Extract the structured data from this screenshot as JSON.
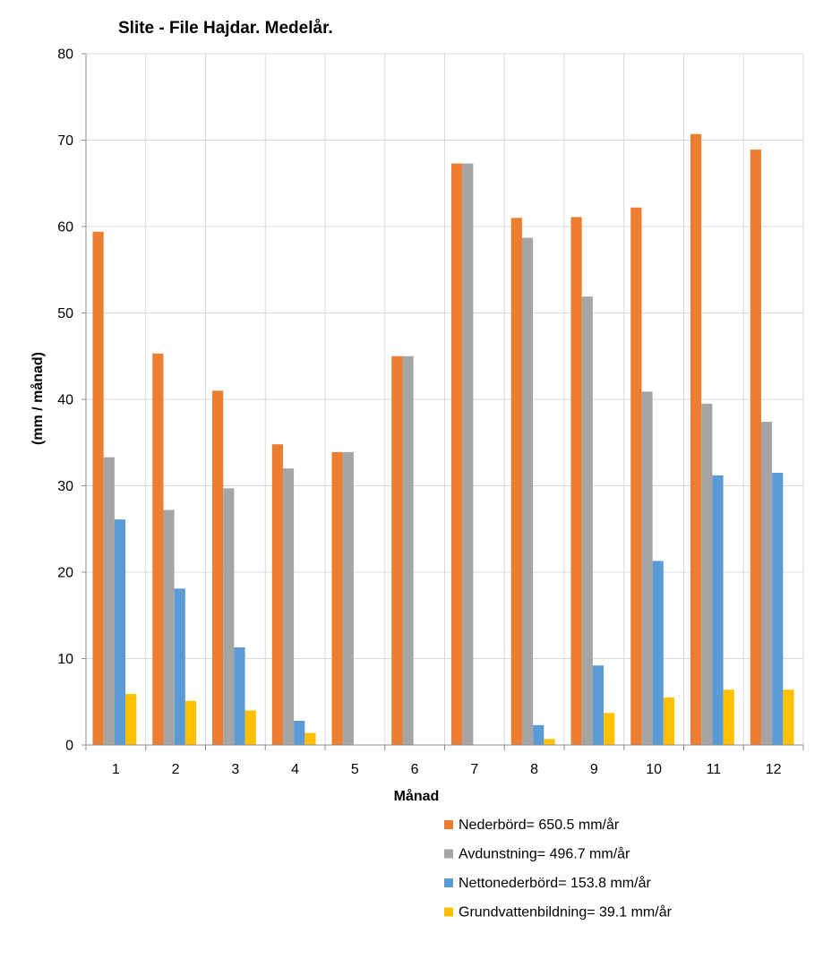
{
  "chart_data": {
    "type": "bar",
    "title": "Slite - File Hajdar. Medelår.",
    "xlabel": "Månad",
    "ylabel": "(mm  / månad)",
    "ylim": [
      0,
      80
    ],
    "yticks": [
      0,
      10,
      20,
      30,
      40,
      50,
      60,
      70,
      80
    ],
    "grid": true,
    "legend_position": "bottom-right",
    "categories": [
      "1",
      "2",
      "3",
      "4",
      "5",
      "6",
      "7",
      "8",
      "9",
      "10",
      "11",
      "12"
    ],
    "series": [
      {
        "name": "Nederbörd= 650.5 mm/år",
        "color": "#ED7D31",
        "values": [
          59.4,
          45.3,
          41.0,
          34.8,
          33.9,
          45.0,
          67.3,
          61.0,
          61.1,
          62.2,
          70.7,
          68.9
        ]
      },
      {
        "name": "Avdunstning= 496.7 mm/år",
        "color": "#A5A5A5",
        "values": [
          33.3,
          27.2,
          29.7,
          32.0,
          33.9,
          45.0,
          67.3,
          58.7,
          51.9,
          40.9,
          39.5,
          37.4
        ]
      },
      {
        "name": "Nettonederbörd= 153.8 mm/år",
        "color": "#5B9BD5",
        "values": [
          26.1,
          18.1,
          11.3,
          2.8,
          0,
          0,
          0,
          2.3,
          9.2,
          21.3,
          31.2,
          31.5
        ]
      },
      {
        "name": "Grundvattenbildning= 39.1 mm/år",
        "color": "#FFC000",
        "values": [
          5.9,
          5.1,
          4.0,
          1.4,
          0,
          0,
          0,
          0.7,
          3.7,
          5.5,
          6.4,
          6.4
        ]
      }
    ]
  }
}
